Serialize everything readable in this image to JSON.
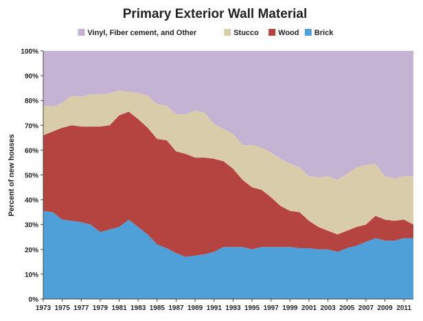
{
  "chart_data": {
    "type": "area",
    "stacked": true,
    "title": "Primary Exterior Wall Material",
    "xlabel": "",
    "ylabel": "Percent of new houses",
    "ylim": [
      0,
      100
    ],
    "y_ticks": [
      "0%",
      "10%",
      "20%",
      "30%",
      "40%",
      "50%",
      "60%",
      "70%",
      "80%",
      "90%",
      "100%"
    ],
    "x_ticks": [
      "1973",
      "1975",
      "1977",
      "1979",
      "1981",
      "1983",
      "1985",
      "1987",
      "1989",
      "1991",
      "1993",
      "1995",
      "1997",
      "1999",
      "2001",
      "2003",
      "2005",
      "2007",
      "2009",
      "2011"
    ],
    "legend_position": "top",
    "legend_order": [
      "Vinyl, Fiber cement, and Other",
      "Stucco",
      "Wood",
      "Brick"
    ],
    "x": [
      1973,
      1974,
      1975,
      1976,
      1977,
      1978,
      1979,
      1980,
      1981,
      1982,
      1983,
      1984,
      1985,
      1986,
      1987,
      1988,
      1989,
      1990,
      1991,
      1992,
      1993,
      1994,
      1995,
      1996,
      1997,
      1998,
      1999,
      2000,
      2001,
      2002,
      2003,
      2004,
      2005,
      2006,
      2007,
      2008,
      2009,
      2010,
      2011,
      2012
    ],
    "series": [
      {
        "name": "Brick",
        "color": "#4fa0d8",
        "values": [
          35.5,
          35,
          32,
          31.5,
          31,
          30,
          27,
          28,
          29,
          32,
          29,
          26,
          22,
          20.5,
          18.5,
          17,
          17.5,
          18,
          19,
          21,
          21,
          21,
          20,
          21,
          21,
          21,
          21,
          20.5,
          20.5,
          20,
          20,
          19,
          20.5,
          21.5,
          23,
          24.5,
          23.5,
          23.5,
          24.5,
          24.5
        ]
      },
      {
        "name": "Wood",
        "color": "#b5433f",
        "values": [
          30.5,
          32.5,
          37,
          38.5,
          38.5,
          39.5,
          42.5,
          42,
          45,
          43.5,
          43.5,
          43,
          42.5,
          43.5,
          41,
          41.5,
          39.5,
          39,
          37.5,
          34.5,
          31.5,
          27,
          25,
          23,
          20,
          16.5,
          14.5,
          14.5,
          11,
          9,
          7.5,
          7,
          7,
          7.5,
          7,
          9,
          8.5,
          8,
          7.5,
          5.5
        ]
      },
      {
        "name": "Stucco",
        "color": "#d9ccaa",
        "values": [
          12,
          10,
          10,
          12,
          12,
          13,
          13,
          13,
          10,
          8,
          10.5,
          13,
          14,
          14,
          15,
          16,
          19,
          18,
          14,
          13,
          14,
          14,
          17,
          17,
          18,
          19,
          19,
          18,
          18,
          20,
          22,
          22,
          23,
          24,
          24,
          21,
          17.5,
          17,
          17.5,
          19.5
        ]
      },
      {
        "name": "Vinyl, Fiber cement, and Other",
        "color": "#c5b3d4",
        "values": [
          22,
          22.5,
          21,
          18,
          18.5,
          17.5,
          17.5,
          17,
          16,
          16.5,
          17,
          18,
          21.5,
          22,
          25.5,
          25.5,
          24,
          25,
          29.5,
          31.5,
          33.5,
          38,
          38,
          39,
          41,
          43.5,
          45.5,
          47,
          50.5,
          51,
          50.5,
          52,
          49.5,
          47,
          46,
          45.5,
          50.5,
          51.5,
          50.5,
          50.5
        ]
      }
    ]
  }
}
